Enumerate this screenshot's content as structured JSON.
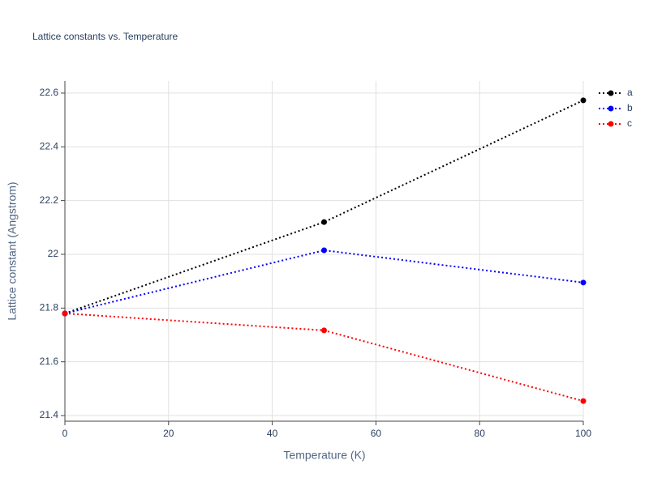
{
  "chart_data": {
    "type": "line",
    "title": "Lattice constants vs. Temperature",
    "x_label": "Temperature (K)",
    "y_label": "Lattice constant (Angstrom)",
    "x": [
      0,
      50,
      100
    ],
    "series": [
      {
        "name": "a",
        "color": "#000000",
        "values": [
          21.78,
          22.12,
          22.573
        ]
      },
      {
        "name": "b",
        "color": "#0000ff",
        "values": [
          21.78,
          22.015,
          21.895
        ]
      },
      {
        "name": "c",
        "color": "#ff0000",
        "values": [
          21.78,
          21.717,
          21.454
        ]
      }
    ],
    "xlim": [
      0,
      100
    ],
    "xticks": [
      0,
      20,
      40,
      60,
      80,
      100
    ],
    "ylim": [
      21.379,
      22.645
    ],
    "yticks": [
      21.4,
      21.6,
      21.8,
      22,
      22.2,
      22.4,
      22.6
    ],
    "grid": true,
    "legend": "top-right"
  }
}
